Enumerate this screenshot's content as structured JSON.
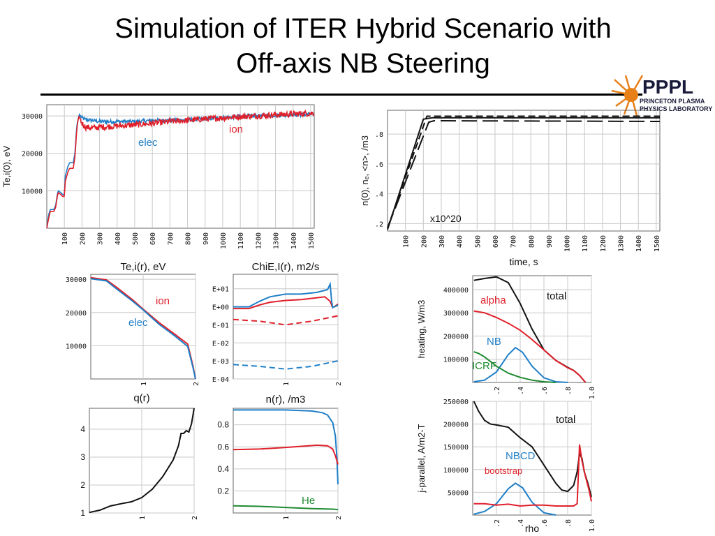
{
  "slide": {
    "title_line1": "Simulation of ITER Hybrid Scenario with",
    "title_line2": "Off-axis NB Steering"
  },
  "logo": {
    "name": "PPPL",
    "line1": "PRINCETON PLASMA",
    "line2": "PHYSICS LABORATORY",
    "color_sun": "#e8801a",
    "color_text": "#1a1a3a"
  },
  "colors": {
    "red": "#e0202a",
    "blue": "#1f7fc8",
    "green": "#1e8a30",
    "black": "#111111"
  },
  "chart_data": [
    {
      "id": "te_time",
      "type": "line",
      "title": "",
      "xlabel": "",
      "ylabel": "Te,i(0), eV",
      "xlim": [
        0,
        1520
      ],
      "ylim": [
        0,
        33000
      ],
      "xticks": [
        "100",
        "200",
        "300",
        "400",
        "500",
        "600",
        "700",
        "800",
        "900",
        "1000",
        "1100",
        "1200",
        "1300",
        "1400",
        "1500"
      ],
      "yticks": [
        "10000",
        "20000",
        "30000"
      ],
      "grid": true,
      "annotations": [
        {
          "text": "elec",
          "color": "#1f7fc8"
        },
        {
          "text": "ion",
          "color": "#e0202a"
        }
      ],
      "series": [
        {
          "name": "elec",
          "color": "#1f7fc8",
          "noise": 500,
          "x": [
            0,
            10,
            20,
            30,
            40,
            50,
            60,
            65,
            80,
            90,
            100,
            105,
            120,
            130,
            140,
            150,
            160,
            170,
            175,
            180,
            185,
            190,
            200,
            220,
            260,
            300,
            400,
            500,
            600,
            700,
            800,
            900,
            1000,
            1100,
            1200,
            1300,
            1400,
            1500,
            1520
          ],
          "y": [
            0,
            3500,
            5000,
            5000,
            5000,
            6000,
            9000,
            10000,
            9500,
            9000,
            9000,
            14000,
            16500,
            17500,
            17500,
            17500,
            20000,
            27000,
            28500,
            29500,
            30500,
            30000,
            29500,
            29000,
            28800,
            28500,
            28500,
            28500,
            28800,
            28800,
            29000,
            29200,
            29500,
            29800,
            30000,
            30200,
            30300,
            30400,
            30400
          ]
        },
        {
          "name": "ion",
          "color": "#e0202a",
          "noise": 800,
          "x": [
            0,
            10,
            20,
            30,
            40,
            50,
            60,
            65,
            80,
            90,
            100,
            105,
            120,
            130,
            140,
            150,
            160,
            170,
            175,
            180,
            185,
            190,
            200,
            220,
            260,
            300,
            400,
            500,
            600,
            700,
            800,
            900,
            1000,
            1100,
            1200,
            1300,
            1400,
            1500,
            1520
          ],
          "y": [
            0,
            2500,
            4500,
            4500,
            4500,
            5500,
            8500,
            9500,
            9000,
            8500,
            8500,
            12500,
            15000,
            16000,
            16000,
            16000,
            19000,
            26000,
            28000,
            29500,
            30000,
            29000,
            28000,
            27000,
            26800,
            27000,
            27300,
            27600,
            28000,
            28500,
            28800,
            29200,
            29500,
            29800,
            30000,
            30300,
            30500,
            30700,
            30700
          ]
        }
      ]
    },
    {
      "id": "density_time",
      "type": "line",
      "title": "",
      "xlabel": "time, s",
      "ylabel": "n(0), nₑ, <n>, /m3",
      "xlim": [
        0,
        1520
      ],
      "ylim": [
        0.15,
        0.96
      ],
      "xticks": [
        "100",
        "200",
        "300",
        "400",
        "500",
        "600",
        "700",
        "800",
        "900",
        "1000",
        "1100",
        "1200",
        "1300",
        "1400",
        "1500"
      ],
      "yticks": [
        ".2",
        ".4",
        ".6",
        ".8"
      ],
      "grid": true,
      "annotations": [
        {
          "text": "x10^20",
          "color": "#111111"
        }
      ],
      "series": [
        {
          "color": "#111111",
          "dash": "10,5",
          "x": [
            0,
            220,
            300,
            1520
          ],
          "y": [
            0.17,
            0.92,
            0.92,
            0.92
          ]
        },
        {
          "color": "#111111",
          "dash": "",
          "x": [
            0,
            200,
            250,
            1520
          ],
          "y": [
            0.16,
            0.9,
            0.91,
            0.91
          ]
        },
        {
          "color": "#111111",
          "dash": "22,8",
          "x": [
            0,
            230,
            260,
            1520
          ],
          "y": [
            0.17,
            0.88,
            0.89,
            0.885
          ]
        }
      ]
    },
    {
      "id": "te_profile",
      "type": "line",
      "title": "Te,i(r), eV",
      "xlabel": "",
      "ylabel": "",
      "xlim": [
        0,
        2
      ],
      "ylim": [
        0,
        31500
      ],
      "xticks": [
        "1",
        "2"
      ],
      "yticks": [
        "10000",
        "20000",
        "30000"
      ],
      "grid": true,
      "annotations": [
        {
          "text": "ion",
          "color": "#e0202a"
        },
        {
          "text": "elec",
          "color": "#1f7fc8"
        }
      ],
      "series": [
        {
          "name": "ion",
          "color": "#e0202a",
          "x": [
            0,
            0.3,
            0.5,
            0.8,
            1.0,
            1.3,
            1.6,
            1.85,
            1.95,
            2.0
          ],
          "y": [
            30500,
            29800,
            27500,
            23800,
            21000,
            17000,
            13500,
            10500,
            4000,
            0
          ]
        },
        {
          "name": "elec",
          "color": "#1f7fc8",
          "x": [
            0,
            0.3,
            0.5,
            0.8,
            1.0,
            1.3,
            1.6,
            1.85,
            1.95,
            2.0
          ],
          "y": [
            30200,
            29500,
            27000,
            23400,
            20800,
            16500,
            13000,
            9800,
            3500,
            0
          ]
        }
      ]
    },
    {
      "id": "chi_profile",
      "type": "line",
      "title": "ChiE,I(r), m2/s",
      "xlabel": "",
      "ylabel": "",
      "xlim": [
        0,
        2
      ],
      "ylim": [
        -4,
        1.8
      ],
      "xticks": [
        "1",
        "2"
      ],
      "yticks": [
        "E-04",
        "E-03",
        "E-02",
        "E-01",
        "E+00",
        "E+01"
      ],
      "grid": true,
      "series": [
        {
          "color": "#e0202a",
          "x": [
            0,
            0.3,
            0.5,
            0.7,
            1.0,
            1.3,
            1.6,
            1.75,
            1.85,
            1.9,
            1.95,
            2.0
          ],
          "y": [
            -0.1,
            -0.1,
            0.1,
            0.25,
            0.35,
            0.4,
            0.5,
            0.55,
            0.3,
            -0.05,
            0.05,
            0.15
          ]
        },
        {
          "color": "#1f7fc8",
          "x": [
            0,
            0.3,
            0.5,
            0.7,
            1.0,
            1.3,
            1.6,
            1.8,
            1.85,
            1.88,
            1.9,
            2.0
          ],
          "y": [
            0,
            0,
            0.3,
            0.55,
            0.7,
            0.7,
            0.8,
            0.95,
            1.25,
            0.3,
            -0.05,
            0.1
          ]
        },
        {
          "color": "#e0202a",
          "dash": "8,5",
          "x": [
            0,
            0.5,
            1.0,
            1.5,
            2.0
          ],
          "y": [
            -0.7,
            -0.8,
            -1.0,
            -0.8,
            -0.5
          ]
        },
        {
          "color": "#1f7fc8",
          "dash": "8,5",
          "x": [
            0,
            0.5,
            1.0,
            1.5,
            2.0
          ],
          "y": [
            -3.2,
            -3.3,
            -3.45,
            -3.3,
            -3.0
          ]
        }
      ]
    },
    {
      "id": "q_profile",
      "type": "line",
      "title": "q(r)",
      "xlabel": "",
      "ylabel": "",
      "xlim": [
        0,
        2
      ],
      "ylim": [
        1,
        4.75
      ],
      "xticks": [
        "1",
        "2"
      ],
      "yticks": [
        "1",
        "2",
        "3",
        "4"
      ],
      "grid": true,
      "series": [
        {
          "color": "#111111",
          "x": [
            0,
            0.2,
            0.4,
            0.6,
            0.8,
            1.0,
            1.2,
            1.4,
            1.6,
            1.7,
            1.75,
            1.8,
            1.85,
            1.9,
            1.95,
            2.0
          ],
          "y": [
            1.02,
            1.1,
            1.25,
            1.33,
            1.4,
            1.55,
            1.85,
            2.3,
            2.9,
            3.4,
            3.85,
            3.85,
            3.95,
            3.9,
            4.2,
            4.75
          ]
        }
      ]
    },
    {
      "id": "n_profile",
      "type": "line",
      "title": "n(r), /m3",
      "xlabel": "",
      "ylabel": "",
      "xlim": [
        0,
        2
      ],
      "ylim": [
        0,
        0.95
      ],
      "xticks": [
        "1",
        "2"
      ],
      "yticks": [
        "0.2",
        "0.4",
        "0.6",
        "0.8"
      ],
      "grid": true,
      "annotations": [
        {
          "text": "He",
          "color": "#1e8a30"
        }
      ],
      "series": [
        {
          "color": "#1f7fc8",
          "x": [
            0,
            0.5,
            1.0,
            1.5,
            1.7,
            1.8,
            1.9,
            1.95,
            1.98,
            2.0
          ],
          "y": [
            0.935,
            0.935,
            0.935,
            0.925,
            0.91,
            0.89,
            0.82,
            0.7,
            0.5,
            0.26
          ]
        },
        {
          "color": "#e0202a",
          "x": [
            0,
            0.5,
            1.0,
            1.3,
            1.6,
            1.8,
            1.9,
            1.95,
            2.0
          ],
          "y": [
            0.575,
            0.58,
            0.595,
            0.605,
            0.615,
            0.61,
            0.58,
            0.52,
            0.44
          ]
        },
        {
          "color": "#1e8a30",
          "x": [
            0,
            0.5,
            1.0,
            1.5,
            1.9,
            2.0
          ],
          "y": [
            0.065,
            0.06,
            0.05,
            0.04,
            0.035,
            0.03
          ]
        }
      ]
    },
    {
      "id": "heating_profile",
      "type": "line",
      "title": "",
      "xlabel": "",
      "ylabel": "heating, W/m3",
      "xlim": [
        0,
        1.0
      ],
      "ylim": [
        0,
        460000
      ],
      "xticks": [
        ".2",
        ".4",
        ".6",
        ".8",
        "1.0"
      ],
      "yticks": [
        "100000",
        "200000",
        "300000",
        "400000"
      ],
      "grid": true,
      "annotations": [
        {
          "text": "total",
          "color": "#111111"
        },
        {
          "text": "alpha",
          "color": "#e0202a"
        },
        {
          "text": "NB",
          "color": "#1f7fc8"
        },
        {
          "text": "ICRF",
          "color": "#1e8a30"
        }
      ],
      "series": [
        {
          "name": "total",
          "color": "#111111",
          "x": [
            0.01,
            0.1,
            0.2,
            0.3,
            0.4,
            0.5,
            0.6,
            0.7,
            0.8,
            0.85,
            0.9,
            0.95
          ],
          "y": [
            440000,
            448000,
            455000,
            430000,
            340000,
            230000,
            140000,
            95000,
            65000,
            52000,
            30000,
            0
          ]
        },
        {
          "name": "alpha",
          "color": "#e0202a",
          "x": [
            0.01,
            0.1,
            0.2,
            0.3,
            0.4,
            0.5,
            0.6,
            0.7,
            0.8,
            0.85,
            0.9,
            0.95
          ],
          "y": [
            308000,
            300000,
            280000,
            255000,
            225000,
            185000,
            140000,
            95000,
            63000,
            52000,
            30000,
            0
          ]
        },
        {
          "name": "NB",
          "color": "#1f7fc8",
          "x": [
            0.01,
            0.1,
            0.2,
            0.3,
            0.36,
            0.42,
            0.5,
            0.6,
            0.7,
            0.8
          ],
          "y": [
            3000,
            10000,
            45000,
            120000,
            150000,
            130000,
            70000,
            20000,
            3000,
            0
          ]
        },
        {
          "name": "ICRF",
          "color": "#1e8a30",
          "x": [
            0.01,
            0.05,
            0.1,
            0.2,
            0.3,
            0.4,
            0.5,
            0.6,
            0.7
          ],
          "y": [
            132000,
            125000,
            110000,
            70000,
            40000,
            22000,
            10000,
            3000,
            0
          ]
        }
      ]
    },
    {
      "id": "jparallel_profile",
      "type": "line",
      "title": "",
      "xlabel": "rho",
      "ylabel": "j-parallel, A/m2-T",
      "xlim": [
        0,
        1.0
      ],
      "ylim": [
        0,
        250000
      ],
      "xticks": [
        ".2",
        ".4",
        ".6",
        ".8",
        "1.0"
      ],
      "yticks": [
        "50000",
        "100000",
        "150000",
        "200000",
        "250000"
      ],
      "grid": true,
      "annotations": [
        {
          "text": "total",
          "color": "#111111"
        },
        {
          "text": "NBCD",
          "color": "#1f7fc8"
        },
        {
          "text": "bootstrap",
          "color": "#e0202a"
        }
      ],
      "series": [
        {
          "name": "total",
          "color": "#111111",
          "x": [
            0.01,
            0.05,
            0.1,
            0.15,
            0.2,
            0.3,
            0.4,
            0.5,
            0.6,
            0.7,
            0.75,
            0.8,
            0.85,
            0.88,
            0.9,
            0.92,
            0.94,
            0.97,
            1.0
          ],
          "y": [
            250000,
            228000,
            208000,
            200000,
            198000,
            193000,
            170000,
            150000,
            110000,
            70000,
            55000,
            52000,
            65000,
            95000,
            135000,
            125000,
            95000,
            70000,
            40000
          ]
        },
        {
          "name": "NBCD",
          "color": "#1f7fc8",
          "x": [
            0.01,
            0.1,
            0.2,
            0.3,
            0.36,
            0.42,
            0.5,
            0.6,
            0.7
          ],
          "y": [
            2000,
            8000,
            25000,
            58000,
            70000,
            60000,
            28000,
            5000,
            0
          ]
        },
        {
          "name": "bootstrap",
          "color": "#e0202a",
          "x": [
            0.01,
            0.1,
            0.2,
            0.3,
            0.4,
            0.5,
            0.6,
            0.7,
            0.8,
            0.85,
            0.88,
            0.9,
            0.92,
            0.95,
            0.98,
            1.0
          ],
          "y": [
            25000,
            25000,
            22000,
            24000,
            20000,
            22000,
            22000,
            20000,
            20000,
            20000,
            25000,
            155000,
            120000,
            85000,
            55000,
            30000
          ]
        }
      ]
    }
  ]
}
